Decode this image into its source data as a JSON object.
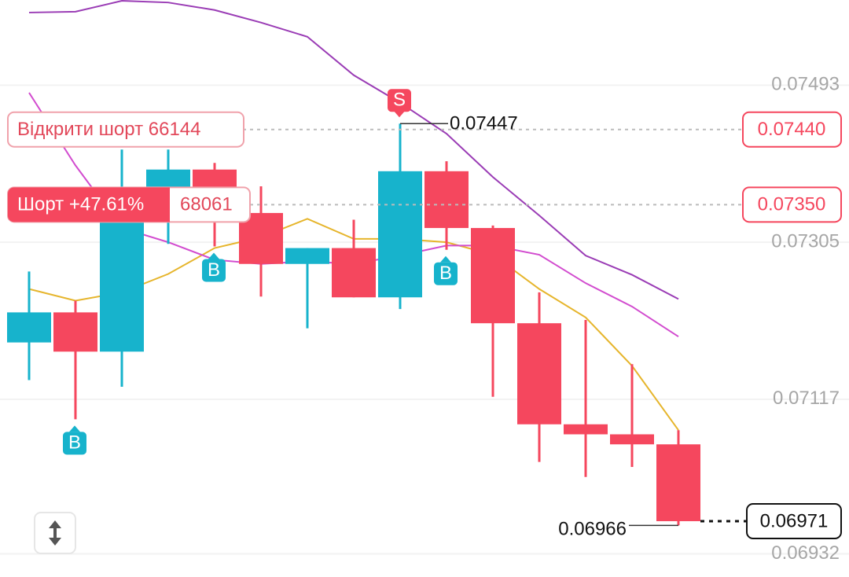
{
  "chart_data": {
    "type": "candlestick",
    "open": [
      0.07185,
      0.07221,
      0.07174,
      0.07335,
      0.07392,
      0.0734,
      0.07279,
      0.07298,
      0.07239,
      0.0739,
      0.07322,
      0.07208,
      0.07087,
      0.07075,
      0.07063
    ],
    "high": [
      0.0727,
      0.07235,
      0.07416,
      0.07416,
      0.074,
      0.07372,
      0.07298,
      0.07332,
      0.07447,
      0.07402,
      0.07325,
      0.07245,
      0.07212,
      0.07159,
      0.0708
    ],
    "low": [
      0.0714,
      0.07093,
      0.07132,
      0.07303,
      0.073,
      0.0724,
      0.07202,
      0.07239,
      0.07225,
      0.07296,
      0.0712,
      0.07042,
      0.07024,
      0.07036,
      0.06966
    ],
    "close": [
      0.07221,
      0.07174,
      0.07335,
      0.07392,
      0.07336,
      0.07279,
      0.07298,
      0.07239,
      0.0739,
      0.07322,
      0.07208,
      0.07087,
      0.07075,
      0.07063,
      0.06971
    ],
    "up_color": "#17b3cc",
    "down_color": "#f5475e",
    "lines": [
      {
        "color": "#e6b52c",
        "values": [
          0.07249,
          0.07235,
          0.07245,
          0.07267,
          0.07298,
          0.07311,
          0.07333,
          0.07309,
          0.07309,
          0.07305,
          0.0729,
          0.07249,
          0.07215,
          0.07157,
          0.0708
        ]
      },
      {
        "color": "#d24ccf",
        "values": [
          0.07484,
          0.07397,
          0.07322,
          0.07305,
          0.07284,
          0.07279,
          0.07282,
          0.07279,
          0.07289,
          0.07301,
          0.07301,
          0.0729,
          0.07256,
          0.07228,
          0.07192
        ]
      },
      {
        "color": "#9a3cb5",
        "values": [
          0.0758,
          0.07581,
          0.07594,
          0.07592,
          0.07583,
          0.07568,
          0.07551,
          0.07505,
          0.07472,
          0.07435,
          0.07383,
          0.07337,
          0.07289,
          0.07266,
          0.07237
        ]
      }
    ],
    "ylim": [
      0.06923,
      0.07595
    ],
    "yticks": [
      0.07493,
      0.07305,
      0.07117,
      0.06932
    ],
    "grid": true,
    "orders": [
      {
        "label": "Відкрити шорт 66144",
        "price": {
          "value": 0.0744,
          "label": "0.07440"
        }
      },
      {
        "label": "Шорт +47.61%",
        "amount": "68061",
        "price": {
          "value": 0.0735,
          "label": "0.07350"
        }
      }
    ],
    "signals": [
      {
        "label": "B",
        "candle": 1,
        "side": "below"
      },
      {
        "label": "B",
        "candle": 4,
        "side": "below"
      },
      {
        "label": "S",
        "candle": 8,
        "side": "above"
      },
      {
        "label": "B",
        "candle": 9,
        "side": "below"
      }
    ]
  }
}
